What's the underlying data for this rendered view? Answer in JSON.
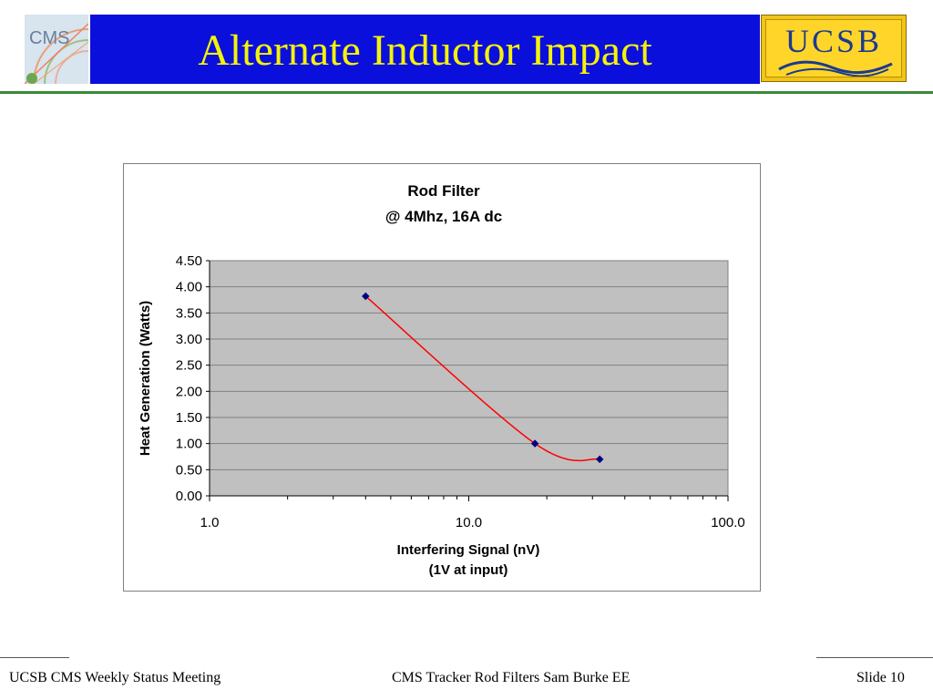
{
  "slide": {
    "title": "Alternate Inductor Impact",
    "logo_left": "CMS",
    "logo_right": "UCSB"
  },
  "footer": {
    "left": "UCSB CMS Weekly Status Meeting",
    "center": "CMS Tracker Rod Filters  Sam Burke EE",
    "right": "Slide 10"
  },
  "colors": {
    "title_bar": "#0a0fdc",
    "title_text": "#f5f20a",
    "plot_area": "#c0c0c0",
    "series_line": "#ff0000",
    "series_marker": "#000080",
    "rule": "#3a8a3a"
  },
  "chart_data": {
    "type": "scatter",
    "title": "Rod Filter",
    "subtitle": "@ 4Mhz, 16A dc",
    "xlabel": "Interfering Signal (nV)",
    "xlabel2": "(1V at input)",
    "ylabel": "Heat Generation (Watts)",
    "xscale": "log",
    "xlim": [
      1,
      100
    ],
    "ylim": [
      0,
      4.5
    ],
    "xticks": [
      "1.0",
      "10.0",
      "100.0"
    ],
    "yticks": [
      "0.00",
      "0.50",
      "1.00",
      "1.50",
      "2.00",
      "2.50",
      "3.00",
      "3.50",
      "4.00",
      "4.50"
    ],
    "grid": true,
    "legend": "none",
    "series": [
      {
        "x": [
          4,
          18,
          32
        ],
        "y": [
          3.82,
          1.0,
          0.7
        ]
      }
    ]
  }
}
